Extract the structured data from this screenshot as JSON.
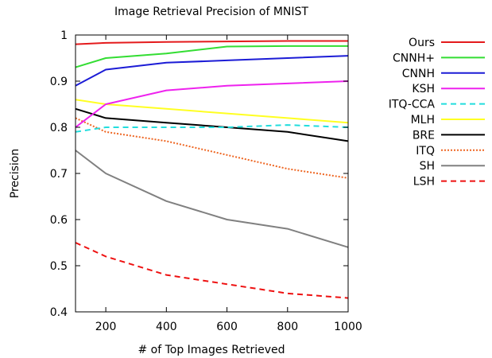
{
  "chart_data": {
    "type": "line",
    "title": "Image Retrieval Precision of MNIST",
    "xlabel": "# of Top Images Retrieved",
    "ylabel": "Precision",
    "xlim": [
      100,
      1000
    ],
    "ylim": [
      0.4,
      1.0
    ],
    "xticks": [
      200,
      400,
      600,
      800,
      1000
    ],
    "yticks": [
      0.4,
      0.5,
      0.6,
      0.7,
      0.8,
      0.9,
      1.0
    ],
    "ytick_labels": [
      "0.4",
      "0.5",
      "0.6",
      "0.7",
      "0.8",
      "0.9",
      "1"
    ],
    "grid": false,
    "legend_position": "right",
    "series": [
      {
        "name": "Ours",
        "color": "#e41a1c",
        "dash": "solid",
        "x": [
          100,
          200,
          400,
          600,
          800,
          1000
        ],
        "y": [
          0.98,
          0.983,
          0.985,
          0.986,
          0.987,
          0.987
        ]
      },
      {
        "name": "CNNH+",
        "color": "#33dd33",
        "dash": "solid",
        "x": [
          100,
          200,
          400,
          600,
          800,
          1000
        ],
        "y": [
          0.93,
          0.95,
          0.96,
          0.975,
          0.976,
          0.976
        ]
      },
      {
        "name": "CNNH",
        "color": "#1c1cd6",
        "dash": "solid",
        "x": [
          100,
          200,
          400,
          600,
          800,
          1000
        ],
        "y": [
          0.89,
          0.925,
          0.94,
          0.945,
          0.95,
          0.955
        ]
      },
      {
        "name": "KSH",
        "color": "#ee22ee",
        "dash": "solid",
        "x": [
          100,
          200,
          400,
          600,
          800,
          1000
        ],
        "y": [
          0.8,
          0.85,
          0.88,
          0.89,
          0.895,
          0.9
        ]
      },
      {
        "name": "ITQ-CCA",
        "color": "#22dddd",
        "dash": "dashed",
        "x": [
          100,
          200,
          400,
          600,
          800,
          1000
        ],
        "y": [
          0.79,
          0.8,
          0.8,
          0.8,
          0.805,
          0.8
        ]
      },
      {
        "name": "MLH",
        "color": "#ffff22",
        "dash": "solid",
        "x": [
          100,
          200,
          400,
          600,
          800,
          1000
        ],
        "y": [
          0.86,
          0.85,
          0.84,
          0.83,
          0.82,
          0.81
        ]
      },
      {
        "name": "BRE",
        "color": "#000000",
        "dash": "solid",
        "x": [
          100,
          200,
          400,
          600,
          800,
          1000
        ],
        "y": [
          0.84,
          0.82,
          0.81,
          0.8,
          0.79,
          0.77
        ]
      },
      {
        "name": "ITQ",
        "color": "#ee6622",
        "dash": "dotted",
        "x": [
          100,
          200,
          400,
          600,
          800,
          1000
        ],
        "y": [
          0.82,
          0.79,
          0.77,
          0.74,
          0.71,
          0.69
        ]
      },
      {
        "name": "SH",
        "color": "#808080",
        "dash": "solid",
        "x": [
          100,
          200,
          400,
          600,
          800,
          1000
        ],
        "y": [
          0.75,
          0.7,
          0.64,
          0.6,
          0.58,
          0.54
        ]
      },
      {
        "name": "LSH",
        "color": "#ee1111",
        "dash": "dashed",
        "x": [
          100,
          200,
          400,
          600,
          800,
          1000
        ],
        "y": [
          0.55,
          0.52,
          0.48,
          0.46,
          0.44,
          0.43
        ]
      }
    ]
  }
}
